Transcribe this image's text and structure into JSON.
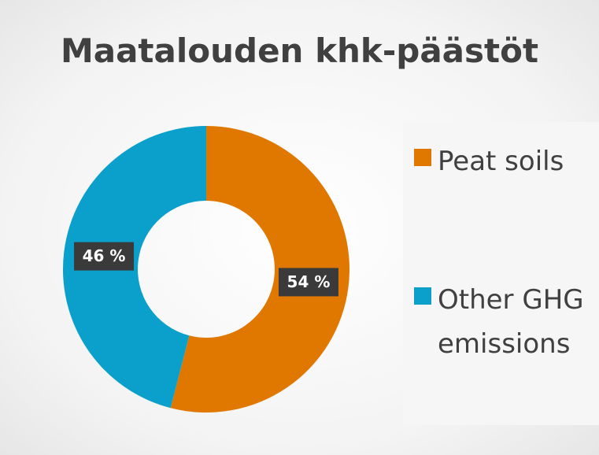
{
  "chart_data": {
    "type": "pie",
    "title": "Maatalouden khk-päästöt",
    "categories": [
      "Peat soils",
      "Other GHG emissions"
    ],
    "values": [
      54,
      46
    ],
    "value_labels": [
      "54 %",
      "46 %"
    ],
    "colors": [
      "#e07800",
      "#0aa0cb"
    ],
    "donut": true
  }
}
